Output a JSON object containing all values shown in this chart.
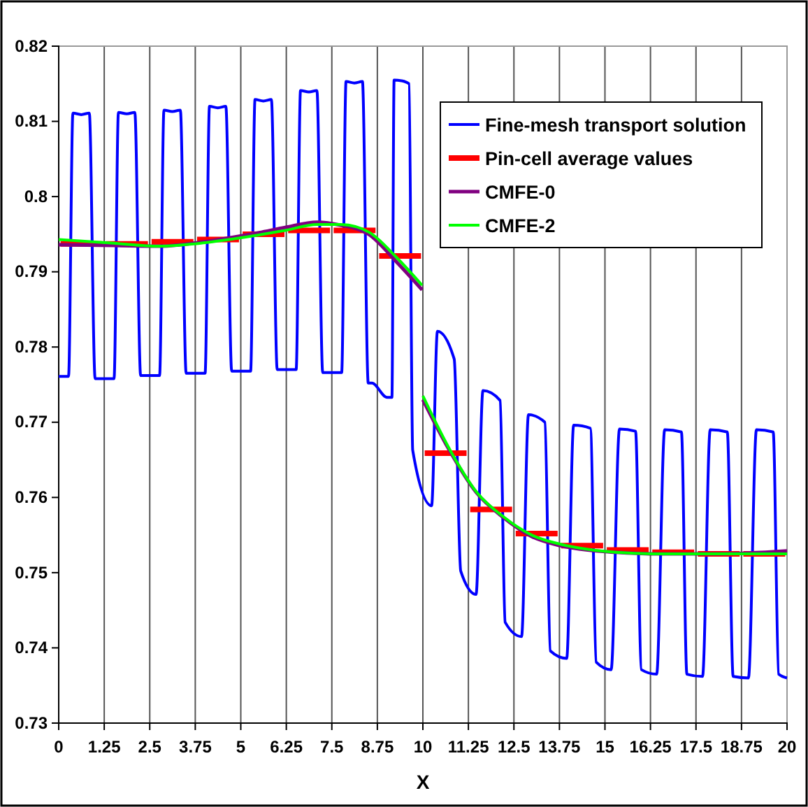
{
  "chart_data": {
    "type": "line",
    "xlabel": "X",
    "xlim": [
      0,
      20
    ],
    "ylim": [
      0.73,
      0.82
    ],
    "xticks": [
      0,
      1.25,
      2.5,
      3.75,
      5,
      6.25,
      7.5,
      8.75,
      10,
      11.25,
      12.5,
      13.75,
      15,
      16.25,
      17.5,
      18.75,
      20
    ],
    "yticks": [
      0.73,
      0.74,
      0.75,
      0.76,
      0.77,
      0.78,
      0.79,
      {
        "value": 0.8,
        "label": "0.8"
      },
      0.81,
      0.82
    ],
    "grid": "x",
    "legend": "top right",
    "line_style": "solid",
    "marker": "none",
    "series": [
      {
        "name": "Fine-mesh transport solution",
        "color": "#0000ff",
        "x": [
          0,
          0.22,
          0.27,
          0.39,
          0.62,
          0.84,
          1.0,
          1.48,
          1.52,
          1.64,
          1.87,
          2.09,
          2.25,
          2.73,
          2.77,
          2.89,
          3.12,
          3.34,
          3.5,
          3.98,
          4.02,
          4.14,
          4.37,
          4.59,
          4.75,
          5.23,
          5.27,
          5.39,
          5.62,
          5.84,
          6.0,
          6.48,
          6.52,
          6.64,
          6.87,
          7.09,
          7.25,
          7.73,
          7.77,
          7.89,
          8.12,
          8.34,
          8.5,
          8.6,
          9.02,
          9.15,
          9.21,
          9.41,
          9.62,
          9.72,
          10.24,
          10.4,
          10.86,
          11.04,
          11.46,
          11.65,
          12.12,
          12.26,
          12.71,
          12.9,
          13.35,
          13.5,
          13.95,
          14.14,
          14.6,
          14.76,
          15.17,
          15.4,
          15.84,
          16.0,
          16.42,
          16.64,
          17.1,
          17.25,
          17.68,
          17.89,
          18.36,
          18.52,
          18.94,
          19.16,
          19.62,
          19.77,
          20
        ],
        "values": [
          0.7761,
          0.7761,
          0.7761,
          0.8111,
          0.8109,
          0.8111,
          0.7758,
          0.7758,
          0.7758,
          0.8112,
          0.811,
          0.8112,
          0.7762,
          0.7762,
          0.7762,
          0.8115,
          0.8113,
          0.8115,
          0.7765,
          0.7765,
          0.7765,
          0.812,
          0.8118,
          0.812,
          0.7768,
          0.7768,
          0.7768,
          0.8129,
          0.8127,
          0.8129,
          0.777,
          0.777,
          0.777,
          0.8141,
          0.8139,
          0.8141,
          0.7766,
          0.7766,
          0.7766,
          0.8153,
          0.8151,
          0.8153,
          0.7752,
          0.7752,
          0.7733,
          0.7733,
          0.8155,
          0.8154,
          0.815,
          0.7663,
          0.7589,
          0.7821,
          0.7784,
          0.7502,
          0.7471,
          0.7742,
          0.7729,
          0.7434,
          0.7415,
          0.771,
          0.77,
          0.7396,
          0.7386,
          0.7696,
          0.7692,
          0.7381,
          0.7371,
          0.7691,
          0.7688,
          0.7371,
          0.7365,
          0.769,
          0.7687,
          0.7365,
          0.7362,
          0.769,
          0.7687,
          0.7362,
          0.736,
          0.769,
          0.7687,
          0.7365,
          0.736
        ]
      },
      {
        "name": "Pin-cell average values",
        "color": "#ff0000",
        "x": [
          0.05,
          1.2,
          1.25,
          1.3,
          2.45,
          2.5,
          2.55,
          3.7,
          3.75,
          3.8,
          4.95,
          5,
          5.05,
          6.2,
          6.25,
          6.3,
          7.45,
          7.5,
          7.55,
          8.7,
          8.75,
          8.8,
          9.95,
          10,
          10.05,
          11.2,
          11.25,
          11.3,
          12.45,
          12.5,
          12.55,
          13.7,
          13.75,
          13.8,
          14.95,
          15,
          15.05,
          16.2,
          16.25,
          16.3,
          17.45,
          17.5,
          17.55,
          18.7,
          18.75,
          18.8,
          19.95
        ],
        "values": [
          0.7937,
          0.7937,
          null,
          0.7937,
          0.7937,
          null,
          0.794,
          0.794,
          null,
          0.7943,
          0.7943,
          null,
          0.795,
          0.795,
          null,
          0.7955,
          0.7955,
          null,
          0.7955,
          0.7955,
          null,
          0.7921,
          0.7921,
          null,
          0.7659,
          0.7659,
          null,
          0.7584,
          0.7584,
          null,
          0.7552,
          0.7552,
          null,
          0.7536,
          0.7536,
          null,
          0.753,
          0.753,
          null,
          0.7527,
          0.7527,
          null,
          0.7525,
          0.7525,
          null,
          0.7525,
          0.7525
        ]
      },
      {
        "name": "CMFE-0",
        "color": "#800080",
        "x": [
          0,
          1.5,
          2.75,
          3.7,
          4.68,
          5.5,
          6.22,
          7.1,
          7.74,
          8.51,
          9.28,
          9.98,
          9.99,
          10,
          10.69,
          11.46,
          12.22,
          12.99,
          13.76,
          14.53,
          15.3,
          16.3,
          18.1,
          20
        ],
        "values": [
          0.7936,
          0.7935,
          0.7934,
          0.7938,
          0.7945,
          0.7952,
          0.7959,
          0.7966,
          0.7962,
          0.795,
          0.7913,
          0.7876,
          null,
          0.773,
          0.7666,
          0.7607,
          0.7573,
          0.7548,
          0.7536,
          0.753,
          0.7527,
          0.7525,
          0.7525,
          0.7529
        ]
      },
      {
        "name": "CMFE-2",
        "color": "#00ff00",
        "x": [
          0,
          1.5,
          2.75,
          3.7,
          4.68,
          5.5,
          6.22,
          7.1,
          7.74,
          8.51,
          9.28,
          9.98,
          9.99,
          10,
          10.69,
          11.46,
          12.22,
          12.99,
          13.76,
          14.53,
          15.3,
          16.3,
          18.1,
          20
        ],
        "values": [
          0.7943,
          0.7938,
          0.7934,
          0.7937,
          0.7943,
          0.7949,
          0.7955,
          0.7963,
          0.7963,
          0.7953,
          0.7919,
          0.7882,
          null,
          0.7735,
          0.7668,
          0.7608,
          0.7574,
          0.755,
          0.7538,
          0.7531,
          0.7527,
          0.7525,
          0.7525,
          0.7525
        ]
      }
    ]
  }
}
